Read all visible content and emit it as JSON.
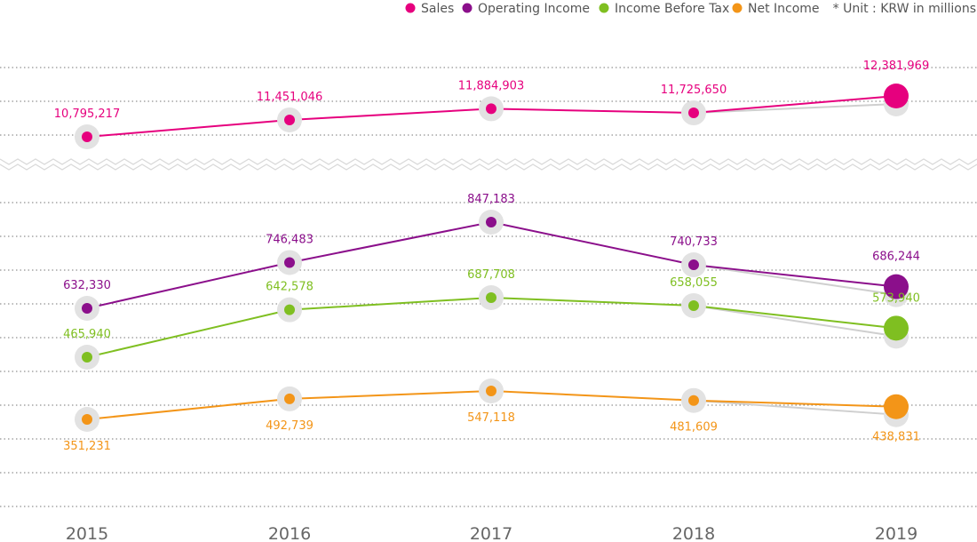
{
  "legend": [
    {
      "name": "Sales",
      "color": "#e6007e"
    },
    {
      "name": "Operating Income",
      "color": "#8b0f8b"
    },
    {
      "name": "Income Before Tax",
      "color": "#7fbf21"
    },
    {
      "name": "Net Income",
      "color": "#f39518"
    }
  ],
  "unit_note": "* Unit : KRW in millions",
  "chart_data": {
    "type": "line",
    "categories": [
      "2015",
      "2016",
      "2017",
      "2018",
      "2019"
    ],
    "series": [
      {
        "name": "Sales",
        "color": "#e6007e",
        "values": [
          10795217,
          11451046,
          11884903,
          11725650,
          12381969
        ],
        "labels": [
          "10,795,217",
          "11,451,046",
          "11,884,903",
          "11,725,650",
          "12,381,969"
        ]
      },
      {
        "name": "Operating Income",
        "color": "#8b0f8b",
        "values": [
          632330,
          746483,
          847183,
          740733,
          686244
        ],
        "labels": [
          "632,330",
          "746,483",
          "847,183",
          "740,733",
          "686,244"
        ]
      },
      {
        "name": "Income Before Tax",
        "color": "#7fbf21",
        "values": [
          465940,
          642578,
          687708,
          658055,
          573940
        ],
        "labels": [
          "465,940",
          "642,578",
          "687,708",
          "658,055",
          "573,940"
        ]
      },
      {
        "name": "Net Income",
        "color": "#f39518",
        "values": [
          351231,
          492739,
          547118,
          481609,
          438831
        ],
        "labels": [
          "351,231",
          "492,739",
          "547,118",
          "481,609",
          "438,831"
        ]
      }
    ],
    "axis_break": true,
    "grid": true,
    "legend_position": "top-right"
  }
}
